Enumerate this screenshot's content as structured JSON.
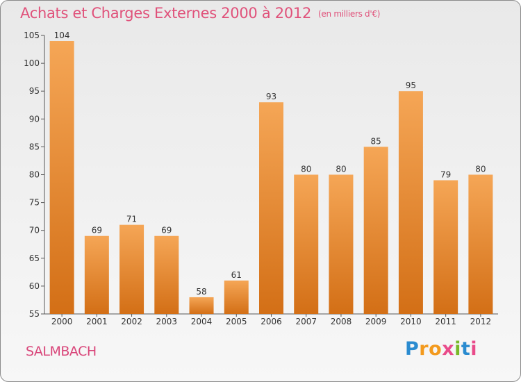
{
  "title": "Achats et Charges Externes 2000 à 2012",
  "unit": "(en milliers d'€)",
  "location": "SALMBACH",
  "logo": "Proxiti",
  "colors": {
    "bar_top": "#f5a656",
    "bar_bottom": "#d36f16",
    "title": "#e0517a"
  },
  "chart_data": {
    "type": "bar",
    "categories": [
      "2000",
      "2001",
      "2002",
      "2003",
      "2004",
      "2005",
      "2006",
      "2007",
      "2008",
      "2009",
      "2010",
      "2011",
      "2012"
    ],
    "values": [
      104,
      69,
      71,
      69,
      58,
      61,
      93,
      80,
      80,
      85,
      95,
      79,
      80
    ],
    "ylim": [
      55,
      105
    ],
    "yticks": [
      55,
      60,
      65,
      70,
      75,
      80,
      85,
      90,
      95,
      100,
      105
    ],
    "grid": false,
    "title": "Achats et Charges Externes 2000 à 2012"
  }
}
